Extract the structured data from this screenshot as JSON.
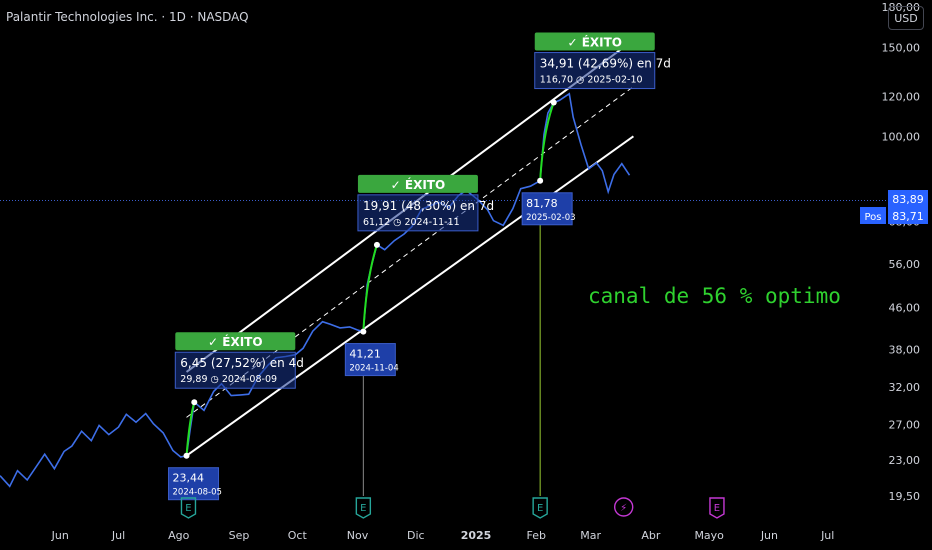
{
  "header": {
    "title": "Palantir Technologies Inc. · 1D · NASDAQ",
    "currency_button": "USD"
  },
  "note": "canal de 56 % optimo",
  "chart_data": {
    "type": "line",
    "title": "Palantir Technologies Inc. · 1D · NASDAQ",
    "y_scale": "log",
    "ylim": [
      17.5,
      186
    ],
    "x_range": [
      "2024-05-01",
      "2025-07-31"
    ],
    "x_ticks": [
      {
        "label": "Jun",
        "date": "2024-06-01"
      },
      {
        "label": "Jul",
        "date": "2024-07-01"
      },
      {
        "label": "Ago",
        "date": "2024-08-01"
      },
      {
        "label": "Sep",
        "date": "2024-09-01"
      },
      {
        "label": "Oct",
        "date": "2024-10-01"
      },
      {
        "label": "Nov",
        "date": "2024-11-01"
      },
      {
        "label": "Dic",
        "date": "2024-12-01"
      },
      {
        "label": "2025",
        "date": "2025-01-01"
      },
      {
        "label": "Feb",
        "date": "2025-02-01"
      },
      {
        "label": "Mar",
        "date": "2025-03-01"
      },
      {
        "label": "Abr",
        "date": "2025-04-01"
      },
      {
        "label": "Mayo",
        "date": "2025-05-01"
      },
      {
        "label": "Jun",
        "date": "2025-06-01"
      },
      {
        "label": "Jul",
        "date": "2025-07-01"
      }
    ],
    "y_ticks": [
      "180,00",
      "150,00",
      "120,00",
      "100,00",
      "68,00",
      "56,00",
      "46,00",
      "38,00",
      "32,00",
      "27,00",
      "23,00",
      "19,50"
    ],
    "y_tick_values": [
      180,
      150,
      120,
      100,
      68,
      56,
      46,
      38,
      32,
      27,
      23,
      19.5
    ],
    "price_labels": [
      {
        "text": "83,89",
        "value": 83.89
      },
      {
        "text": "83,71",
        "value": 83.71,
        "tag": "Pos"
      }
    ],
    "series": [
      {
        "color": "#3d6ee8",
        "points": [
          [
            "2024-05-01",
            21.4
          ],
          [
            "2024-05-06",
            20.4
          ],
          [
            "2024-05-10",
            21.9
          ],
          [
            "2024-05-15",
            21.0
          ],
          [
            "2024-05-20",
            22.4
          ],
          [
            "2024-05-24",
            23.6
          ],
          [
            "2024-05-29",
            22.1
          ],
          [
            "2024-06-03",
            23.9
          ],
          [
            "2024-06-07",
            24.5
          ],
          [
            "2024-06-12",
            26.2
          ],
          [
            "2024-06-17",
            25.1
          ],
          [
            "2024-06-21",
            26.9
          ],
          [
            "2024-06-26",
            25.8
          ],
          [
            "2024-07-01",
            26.7
          ],
          [
            "2024-07-05",
            28.3
          ],
          [
            "2024-07-10",
            27.3
          ],
          [
            "2024-07-15",
            28.4
          ],
          [
            "2024-07-19",
            27.1
          ],
          [
            "2024-07-24",
            26.0
          ],
          [
            "2024-07-29",
            24.0
          ],
          [
            "2024-08-02",
            23.3
          ],
          [
            "2024-08-05",
            23.44
          ],
          [
            "2024-08-07",
            26.6
          ],
          [
            "2024-08-09",
            29.89
          ],
          [
            "2024-08-14",
            28.8
          ],
          [
            "2024-08-19",
            31.4
          ],
          [
            "2024-08-23",
            32.5
          ],
          [
            "2024-08-28",
            30.8
          ],
          [
            "2024-09-02",
            30.9
          ],
          [
            "2024-09-06",
            31.0
          ],
          [
            "2024-09-11",
            33.6
          ],
          [
            "2024-09-16",
            35.4
          ],
          [
            "2024-09-20",
            36.6
          ],
          [
            "2024-09-25",
            36.8
          ],
          [
            "2024-09-30",
            37.1
          ],
          [
            "2024-10-04",
            38.2
          ],
          [
            "2024-10-09",
            41.3
          ],
          [
            "2024-10-14",
            43.1
          ],
          [
            "2024-10-18",
            42.6
          ],
          [
            "2024-10-23",
            41.9
          ],
          [
            "2024-10-28",
            42.1
          ],
          [
            "2024-11-01",
            41.5
          ],
          [
            "2024-11-04",
            41.21
          ],
          [
            "2024-11-06",
            51.0
          ],
          [
            "2024-11-08",
            55.2
          ],
          [
            "2024-11-11",
            61.12
          ],
          [
            "2024-11-15",
            59.8
          ],
          [
            "2024-11-20",
            62.3
          ],
          [
            "2024-11-25",
            64.2
          ],
          [
            "2024-11-29",
            66.4
          ],
          [
            "2024-12-04",
            71.8
          ],
          [
            "2024-12-09",
            73.2
          ],
          [
            "2024-12-13",
            74.2
          ],
          [
            "2024-12-18",
            72.4
          ],
          [
            "2024-12-23",
            76.5
          ],
          [
            "2024-12-27",
            78.3
          ],
          [
            "2025-01-02",
            75.0
          ],
          [
            "2025-01-07",
            71.6
          ],
          [
            "2025-01-10",
            68.2
          ],
          [
            "2025-01-15",
            66.8
          ],
          [
            "2025-01-20",
            72.1
          ],
          [
            "2025-01-24",
            78.9
          ],
          [
            "2025-01-29",
            79.8
          ],
          [
            "2025-02-03",
            81.78
          ],
          [
            "2025-02-05",
            101.0
          ],
          [
            "2025-02-07",
            111.3
          ],
          [
            "2025-02-10",
            116.7
          ],
          [
            "2025-02-13",
            117.9
          ],
          [
            "2025-02-18",
            121.5
          ],
          [
            "2025-02-20",
            109.2
          ],
          [
            "2025-02-24",
            96.4
          ],
          [
            "2025-02-28",
            86.3
          ],
          [
            "2025-03-04",
            88.7
          ],
          [
            "2025-03-07",
            85.6
          ],
          [
            "2025-03-10",
            77.8
          ],
          [
            "2025-03-13",
            84.2
          ],
          [
            "2025-03-17",
            88.4
          ],
          [
            "2025-03-21",
            83.89
          ]
        ]
      }
    ],
    "moves": [
      {
        "from": [
          "2024-08-05",
          23.44
        ],
        "to": [
          "2024-08-09",
          29.89
        ],
        "color": "#22dd22"
      },
      {
        "from": [
          "2024-11-04",
          41.21
        ],
        "to": [
          "2024-11-11",
          61.12
        ],
        "color": "#22dd22"
      },
      {
        "from": [
          "2025-02-03",
          81.78
        ],
        "to": [
          "2025-02-10",
          116.7
        ],
        "color": "#22dd22"
      }
    ],
    "channel": {
      "start": "2024-08-05",
      "end": "2025-03-23",
      "upper": [
        34.3,
        155.0
      ],
      "middle": [
        27.9,
        125.5
      ],
      "lower": [
        23.44,
        100.1
      ]
    },
    "annotations": [
      {
        "badge": "✓ ÉXITO",
        "line1": "6,45 (27,52%) en 4d",
        "line2_value": "29,89",
        "line2_date": "2024-08-09",
        "anchor": [
          "2024-08-09",
          29.89
        ]
      },
      {
        "badge": "✓ ÉXITO",
        "line1": "19,91 (48,30%) en 7d",
        "line2_value": "61,12",
        "line2_date": "2024-11-11",
        "anchor": [
          "2024-11-11",
          61.12
        ]
      },
      {
        "badge": "✓ ÉXITO",
        "line1": "34,91 (42,69%) en 7d",
        "line2_value": "116,70",
        "line2_date": "2025-02-10",
        "anchor": [
          "2025-02-10",
          116.7
        ]
      }
    ],
    "entry_labels": [
      {
        "value_text": "23,44",
        "date": "2024-08-05",
        "anchor": [
          "2024-08-05",
          23.44
        ]
      },
      {
        "value_text": "41,21",
        "date": "2024-11-04",
        "anchor": [
          "2024-11-04",
          41.21
        ]
      },
      {
        "value_text": "81,78",
        "date": "2025-02-03",
        "anchor": [
          "2025-02-03",
          81.78
        ]
      }
    ],
    "event_markers": [
      {
        "letter": "E",
        "date": "2024-08-06",
        "color": "#26a69a",
        "kind": "earnings"
      },
      {
        "letter": "E",
        "date": "2024-11-04",
        "color": "#26a69a",
        "kind": "earnings"
      },
      {
        "letter": "E",
        "date": "2025-02-03",
        "color": "#26a69a",
        "kind": "earnings"
      },
      {
        "letter": "⚡",
        "date": "2025-03-18",
        "color": "#c438d4",
        "kind": "dividend"
      },
      {
        "letter": "E",
        "date": "2025-05-05",
        "color": "#c438d4",
        "kind": "earnings"
      }
    ]
  }
}
